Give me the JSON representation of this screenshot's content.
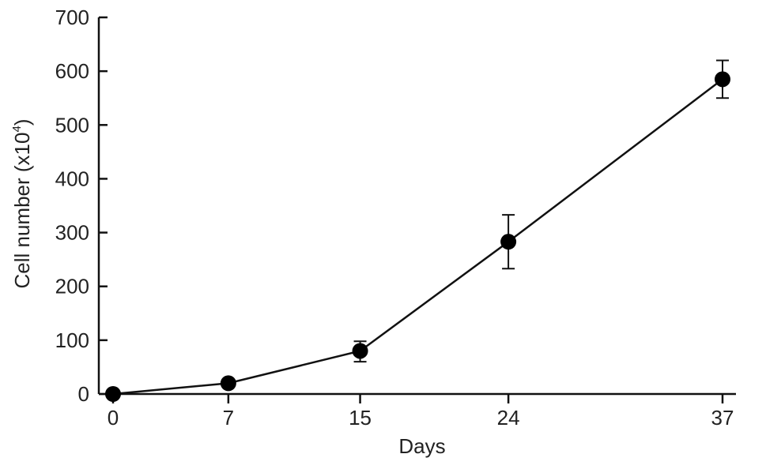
{
  "chart_data": {
    "type": "line",
    "title": "",
    "xlabel": "Days",
    "ylabel_main": "Cell number (x10",
    "ylabel_sup": "4",
    "ylabel_end": ")",
    "x_ticks": [
      "0",
      "7",
      "15",
      "24",
      "37"
    ],
    "y_ticks": [
      "0",
      "100",
      "200",
      "300",
      "400",
      "500",
      "600",
      "700"
    ],
    "xlim": [
      0,
      37
    ],
    "ylim": [
      0,
      700
    ],
    "grid": false,
    "series": [
      {
        "x": [
          0,
          7,
          15,
          24,
          37
        ],
        "values": [
          0,
          20,
          80,
          283,
          585
        ],
        "err_low": [
          0,
          16,
          60,
          233,
          550
        ],
        "err_high": [
          0,
          24,
          98,
          333,
          620
        ]
      }
    ],
    "colors": {
      "line": "#111111",
      "marker": "#000000",
      "axis": "#111111",
      "text": "#222222"
    }
  }
}
